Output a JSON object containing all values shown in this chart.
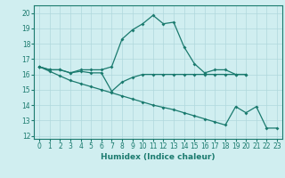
{
  "line1_x": [
    0,
    1,
    2,
    3,
    4,
    5,
    6,
    7,
    8,
    9,
    10,
    11,
    12,
    13,
    14,
    15,
    16,
    17,
    18,
    19,
    20
  ],
  "line1_y": [
    16.5,
    16.3,
    16.3,
    16.1,
    16.3,
    16.3,
    16.3,
    16.5,
    18.3,
    18.9,
    19.3,
    19.85,
    19.3,
    19.4,
    17.8,
    16.7,
    16.1,
    16.3,
    16.3,
    16.0,
    16.0
  ],
  "line2_x": [
    0,
    1,
    2,
    3,
    4,
    5,
    6,
    7,
    8,
    9,
    10,
    11,
    12,
    13,
    14,
    15,
    16,
    17,
    18,
    19,
    20
  ],
  "line2_y": [
    16.5,
    16.3,
    16.3,
    16.1,
    16.2,
    16.1,
    16.1,
    14.9,
    15.5,
    15.8,
    16.0,
    16.0,
    16.0,
    16.0,
    16.0,
    16.0,
    16.0,
    16.0,
    16.0,
    16.0,
    16.0
  ],
  "line3_x": [
    0,
    1,
    2,
    3,
    4,
    5,
    6,
    7,
    8,
    9,
    10,
    11,
    12,
    13,
    14,
    15,
    16,
    17,
    18,
    19,
    20,
    21,
    22,
    23
  ],
  "line3_y": [
    16.5,
    16.2,
    15.9,
    15.6,
    15.4,
    15.2,
    15.0,
    14.8,
    14.6,
    14.4,
    14.2,
    14.0,
    13.85,
    13.7,
    13.5,
    13.3,
    13.1,
    12.9,
    12.7,
    13.9,
    13.5,
    13.9,
    12.5,
    12.5
  ],
  "color": "#1a7a6e",
  "bgcolor": "#d0eef0",
  "grid_color": "#b0d8dc",
  "xlabel": "Humidex (Indice chaleur)",
  "xlim": [
    -0.5,
    23.5
  ],
  "ylim": [
    11.8,
    20.5
  ],
  "yticks": [
    12,
    13,
    14,
    15,
    16,
    17,
    18,
    19,
    20
  ],
  "xticks": [
    0,
    1,
    2,
    3,
    4,
    5,
    6,
    7,
    8,
    9,
    10,
    11,
    12,
    13,
    14,
    15,
    16,
    17,
    18,
    19,
    20,
    21,
    22,
    23
  ],
  "tick_fontsize": 5.5,
  "xlabel_fontsize": 6.5
}
